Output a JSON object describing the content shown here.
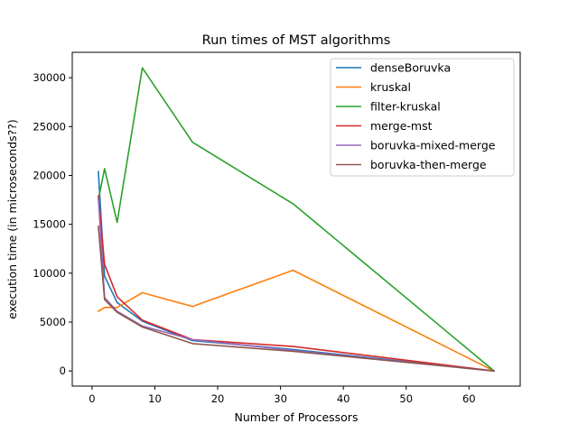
{
  "chart_data": {
    "type": "line",
    "title": "Run times of MST algorithms",
    "xlabel": "Number of Processors",
    "ylabel": "execution time (in microseconds??)",
    "xlim": [
      -3.15,
      68.15
    ],
    "ylim": [
      -1550,
      32600
    ],
    "xticks": [
      0,
      10,
      20,
      30,
      40,
      50,
      60
    ],
    "yticks": [
      0,
      5000,
      10000,
      15000,
      20000,
      25000,
      30000
    ],
    "grid": false,
    "legend_position": "top-right",
    "series": [
      {
        "name": "denseBoruvka",
        "color": "#1f77b4",
        "x": [
          1,
          2,
          4,
          8,
          16,
          32,
          64
        ],
        "y": [
          20400,
          9700,
          7000,
          5100,
          3100,
          2200,
          0
        ]
      },
      {
        "name": "kruskal",
        "color": "#ff7f0e",
        "x": [
          1,
          2,
          4,
          8,
          16,
          32,
          64
        ],
        "y": [
          6100,
          6500,
          6500,
          8000,
          6600,
          10300,
          0
        ]
      },
      {
        "name": "filter-kruskal",
        "color": "#2ca02c",
        "x": [
          1,
          2,
          4,
          8,
          16,
          32,
          64
        ],
        "y": [
          17500,
          20700,
          15200,
          31000,
          23400,
          17100,
          0
        ]
      },
      {
        "name": "merge-mst",
        "color": "#d62728",
        "x": [
          1,
          2,
          4,
          8,
          16,
          32,
          64
        ],
        "y": [
          17900,
          10900,
          7600,
          5200,
          3200,
          2500,
          0
        ]
      },
      {
        "name": "boruvka-mixed-merge",
        "color": "#9467bd",
        "x": [
          1,
          2,
          4,
          8,
          16,
          32,
          64
        ],
        "y": [
          17700,
          7500,
          6100,
          4600,
          3200,
          2100,
          0
        ]
      },
      {
        "name": "boruvka-then-merge",
        "color": "#8c564b",
        "x": [
          1,
          2,
          4,
          8,
          16,
          32,
          64
        ],
        "y": [
          14800,
          7300,
          6000,
          4500,
          2800,
          2000,
          0
        ]
      }
    ]
  }
}
